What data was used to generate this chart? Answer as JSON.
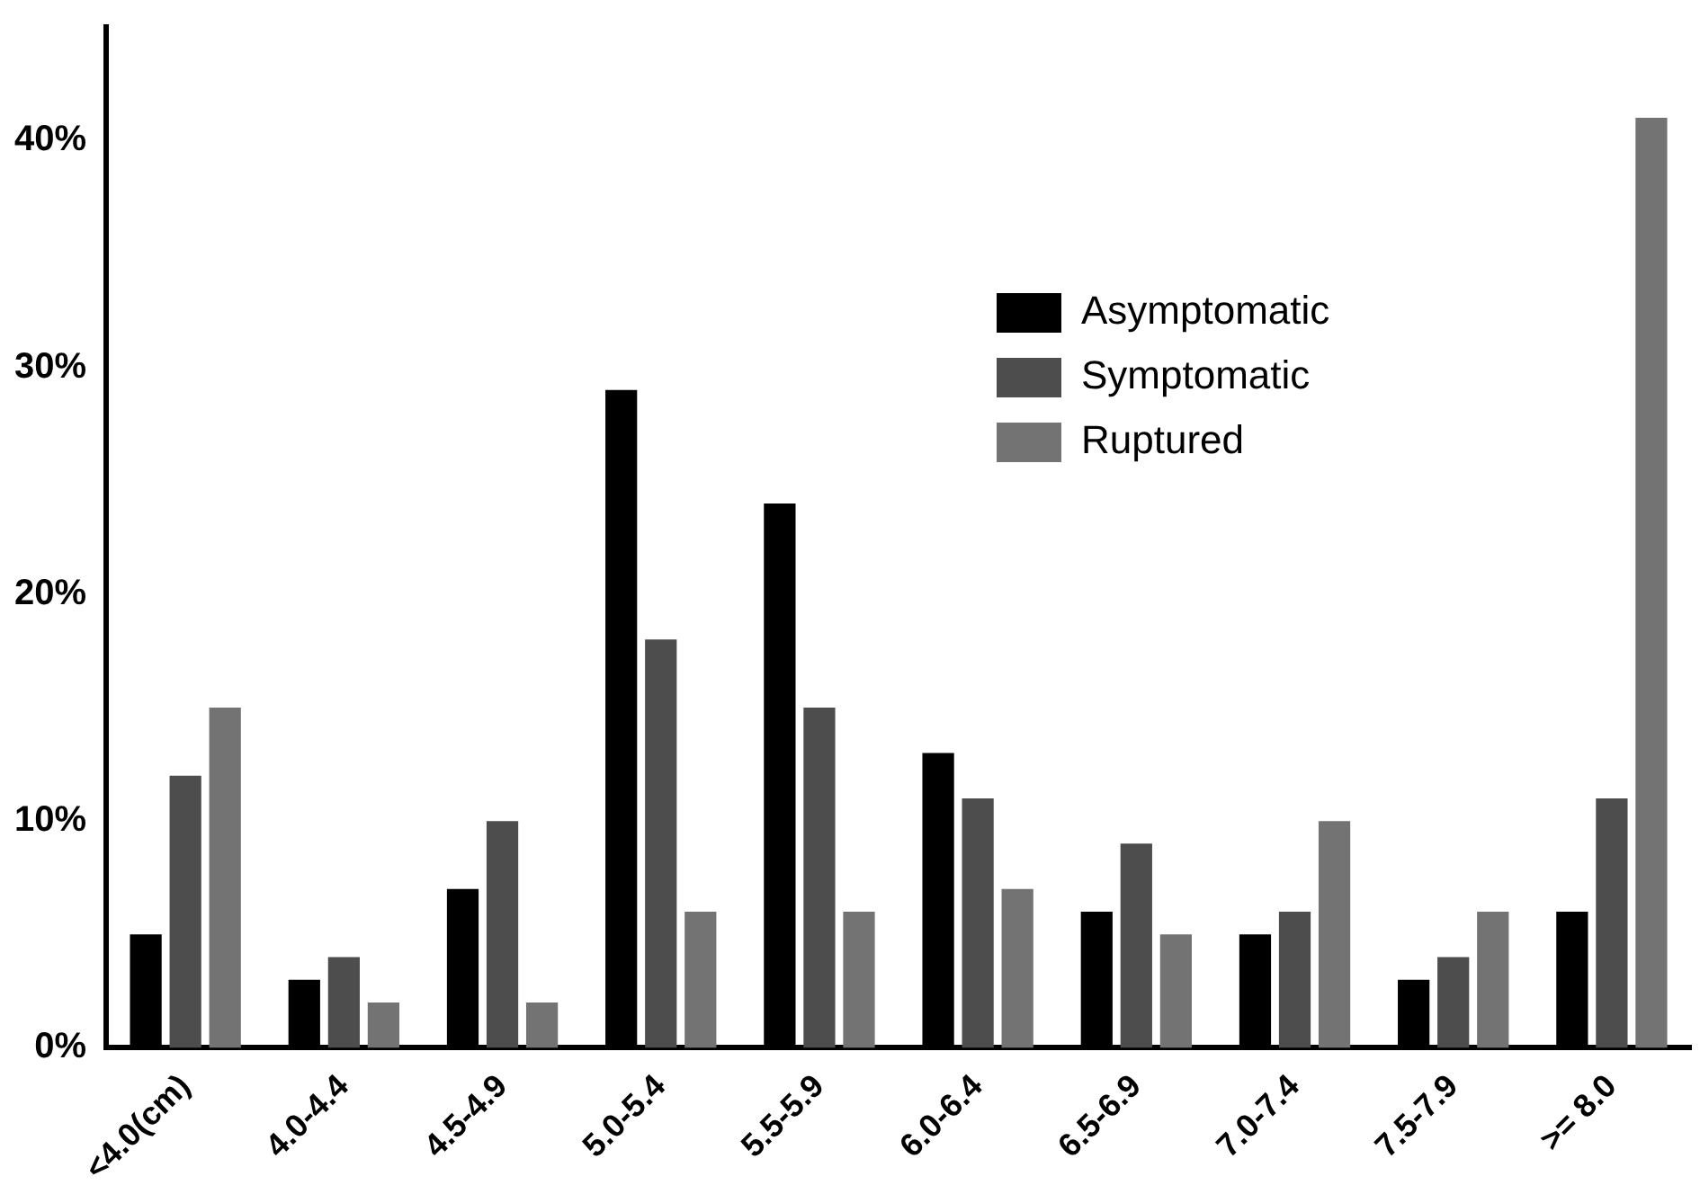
{
  "chart_data": {
    "type": "bar",
    "categories": [
      "<4.0(cm)",
      "4.0-4.4",
      "4.5-4.9",
      "5.0-5.4",
      "5.5-5.9",
      "6.0-6.4",
      "6.5-6.9",
      "7.0-7.4",
      "7.5-7.9",
      ">= 8.0"
    ],
    "series": [
      {
        "name": "Asymptomatic",
        "color": "#000000",
        "values": [
          5,
          3,
          7,
          29,
          24,
          13,
          6,
          5,
          3,
          6
        ]
      },
      {
        "name": "Symptomatic",
        "color": "#4d4d4d",
        "values": [
          12,
          4,
          10,
          18,
          15,
          11,
          9,
          6,
          4,
          11
        ]
      },
      {
        "name": "Ruptured",
        "color": "#737373",
        "values": [
          15,
          2,
          2,
          6,
          6,
          7,
          5,
          10,
          6,
          41
        ]
      }
    ],
    "ylim": [
      0,
      45
    ],
    "yticks": [
      {
        "value": 0,
        "label": "0%"
      },
      {
        "value": 10,
        "label": "10%"
      },
      {
        "value": 20,
        "label": "20%"
      },
      {
        "value": 30,
        "label": "30%"
      },
      {
        "value": 40,
        "label": "40%"
      }
    ],
    "grid": false,
    "legend": "top right"
  }
}
